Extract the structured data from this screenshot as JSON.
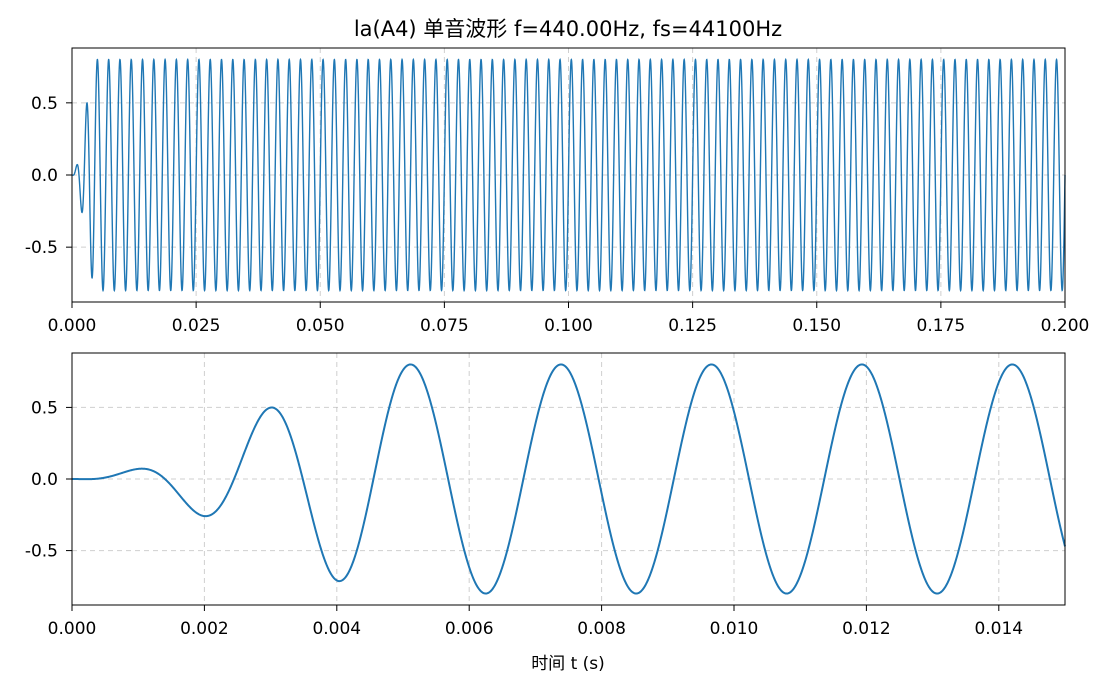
{
  "chart_data": [
    {
      "type": "line",
      "title": "la(A4) 单音波形 f=440.00Hz, fs=44100Hz",
      "xlabel": "",
      "ylabel": "",
      "xlim": [
        0.0,
        0.2
      ],
      "ylim": [
        -0.88,
        0.88
      ],
      "xticks": [
        "0.000",
        "0.025",
        "0.050",
        "0.075",
        "0.100",
        "0.125",
        "0.150",
        "0.175",
        "0.200"
      ],
      "yticks": [
        "0.5",
        "0.0",
        "-0.5"
      ],
      "ytick_values": [
        0.5,
        0.0,
        -0.5
      ],
      "grid": true,
      "series": [
        {
          "frequency_hz": 440.0,
          "sample_rate_hz": 44100,
          "peak_amplitude": 0.8,
          "x_start": 0.0,
          "x_end": 0.2,
          "color": "#1f77b4"
        }
      ]
    },
    {
      "type": "line",
      "title": "",
      "xlabel": "时间 t (s)",
      "ylabel": "",
      "xlim": [
        0.0,
        0.015
      ],
      "ylim": [
        -0.88,
        0.88
      ],
      "xticks": [
        "0.000",
        "0.002",
        "0.004",
        "0.006",
        "0.008",
        "0.010",
        "0.012",
        "0.014"
      ],
      "yticks": [
        "0.5",
        "0.0",
        "-0.5"
      ],
      "ytick_values": [
        0.5,
        0.0,
        -0.5
      ],
      "grid": true,
      "series": [
        {
          "frequency_hz": 440.0,
          "sample_rate_hz": 44100,
          "peak_amplitude": 0.8,
          "x_start": 0.0,
          "x_end": 0.015,
          "color": "#1f77b4",
          "points": [
            [
              0.0,
              0.0
            ],
            [
              0.0007,
              0.105
            ],
            [
              0.0018,
              -0.275
            ],
            [
              0.0029,
              0.46
            ],
            [
              0.004,
              -0.64
            ],
            [
              0.0051,
              0.8
            ],
            [
              0.0063,
              -0.8
            ],
            [
              0.0074,
              0.8
            ],
            [
              0.0085,
              -0.8
            ],
            [
              0.0097,
              0.8
            ],
            [
              0.0108,
              -0.8
            ],
            [
              0.0119,
              0.8
            ],
            [
              0.0131,
              -0.8
            ],
            [
              0.0142,
              0.8
            ],
            [
              0.015,
              -0.48
            ]
          ]
        }
      ]
    }
  ]
}
